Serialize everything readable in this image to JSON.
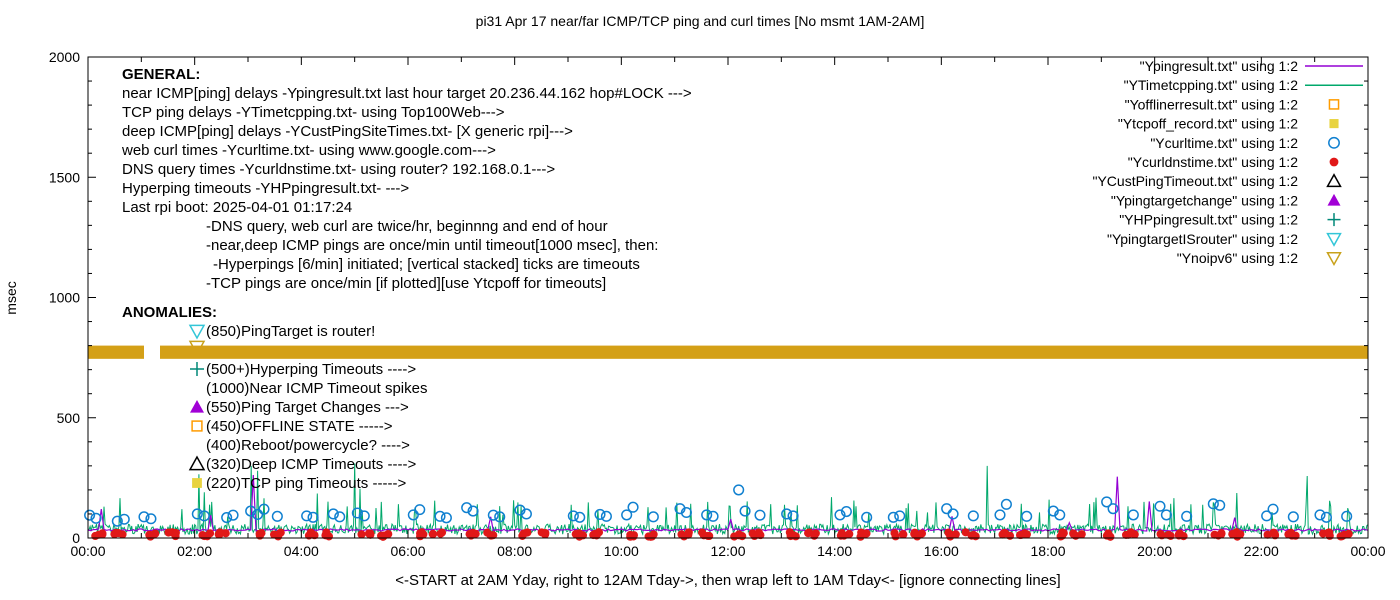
{
  "title": "pi31 Apr 17  near/far ICMP/TCP ping and curl times [No msmt 1AM-2AM]",
  "caption": "<-START at 2AM Yday, right to 12AM Tday->, then wrap left to 1AM Tday<- [ignore connecting lines]",
  "ylabel": "msec",
  "palette": {
    "purple": "#9400d3",
    "green": "#00a86b",
    "orange": "#ff9c00",
    "yellow": "#e8d33f",
    "blue": "#1080d0",
    "red": "#e01818",
    "black": "#000000",
    "magenta": "#a100d6",
    "teal": "#008878",
    "cyan": "#33c6d8",
    "gold": "#c9a21b",
    "band": "#d4a017",
    "axis": "#000000"
  },
  "legend": [
    {
      "label": "\"Ypingresult.txt\" using 1:2",
      "marker": "line",
      "color": "purple"
    },
    {
      "label": "\"YTimetcpping.txt\" using 1:2",
      "marker": "line",
      "color": "green"
    },
    {
      "label": "\"Yofflinerresult.txt\" using 1:2",
      "marker": "square-open",
      "color": "orange"
    },
    {
      "label": "\"Ytcpoff_record.txt\" using 1:2",
      "marker": "square-filled",
      "color": "yellow"
    },
    {
      "label": "\"Ycurltime.txt\" using 1:2",
      "marker": "circle-open",
      "color": "blue"
    },
    {
      "label": "\"Ycurldnstime.txt\" using 1:2",
      "marker": "circle-filled",
      "color": "red"
    },
    {
      "label": "\"YCustPingTimeout.txt\" using 1:2",
      "marker": "triangle-up-open",
      "color": "black"
    },
    {
      "label": "\"Ypingtargetchange\" using 1:2",
      "marker": "triangle-up-filled",
      "color": "magenta"
    },
    {
      "label": "\"YHPpingresult.txt\" using 1:2",
      "marker": "plus",
      "color": "teal"
    },
    {
      "label": "\"YpingtargetISrouter\" using 1:2",
      "marker": "triangle-down-open",
      "color": "cyan"
    },
    {
      "label": "\"Ynoipv6\" using 1:2",
      "marker": "triangle-down-open",
      "color": "gold"
    }
  ],
  "general": {
    "header": "GENERAL:",
    "lines": [
      "near ICMP[ping] delays -Ypingresult.txt last hour target 20.236.44.162 hop#LOCK --->",
      "TCP ping delays -YTimetcpping.txt- using Top100Web--->",
      "deep ICMP[ping] delays -YCustPingSiteTimes.txt- [X generic rpi]--->",
      "web curl times -Ycurltime.txt- using www.google.com--->",
      "DNS query times -Ycurldnstime.txt- using router? 192.168.0.1--->",
      "Hyperping timeouts -YHPpingresult.txt- --->",
      "Last rpi boot: 2025-04-01 01:17:24"
    ],
    "sub_lines": [
      "-DNS query, web curl are twice/hr, beginnng and end of hour",
      "-near,deep ICMP pings are once/min until timeout[1000 msec], then:",
      "-Hyperpings [6/min] initiated; [vertical stacked] ticks are timeouts",
      "-TCP pings are once/min [if plotted][use Ytcpoff for timeouts]"
    ]
  },
  "anomalies": {
    "header": "ANOMALIES:",
    "rows": [
      {
        "y": 336,
        "marker": "triangle-down-open",
        "color": "cyan",
        "text": "(850)PingTarget is router!"
      },
      {
        "y": 352,
        "marker": "triangle-down-open",
        "color": "gold",
        "text": "",
        "occluded": true
      },
      {
        "y": 374,
        "marker": "plus",
        "color": "teal",
        "text": "(500+)Hyperping Timeouts ---->"
      },
      {
        "y": 393,
        "marker": "",
        "color": "black",
        "text": "(1000)Near ICMP Timeout spikes"
      },
      {
        "y": 412,
        "marker": "triangle-up-filled",
        "color": "magenta",
        "text": "(550)Ping Target Changes --->"
      },
      {
        "y": 431,
        "marker": "square-open",
        "color": "orange",
        "text": "(450)OFFLINE STATE ----->"
      },
      {
        "y": 450,
        "marker": "",
        "color": "black",
        "text": "(400)Reboot/powercycle? ---->"
      },
      {
        "y": 469,
        "marker": "triangle-up-open",
        "color": "black",
        "text": "(320)Deep ICMP Timeouts ---->"
      },
      {
        "y": 488,
        "marker": "square-filled",
        "color": "yellow",
        "text": "(220)TCP ping Timeouts ----->"
      }
    ]
  },
  "chart_data": {
    "type": "mixed-line-scatter",
    "x_axis": {
      "range_hours": [
        0,
        24
      ],
      "tick_labels": [
        "00:00",
        "02:00",
        "04:00",
        "06:00",
        "08:00",
        "10:00",
        "12:00",
        "14:00",
        "16:00",
        "18:00",
        "20:00",
        "22:00",
        "00:00"
      ],
      "minor_tick_every_hours": 1
    },
    "y_axis": {
      "label": "msec",
      "range": [
        0,
        2000
      ],
      "ticks": [
        0,
        500,
        1000,
        1500,
        2000
      ],
      "minor_tick_every": 100
    },
    "grid": false,
    "legend_position": "top-right",
    "band": {
      "name": "Ynoipv6",
      "y_msec": [
        745,
        800
      ],
      "gaps_hours": [
        [
          1.05,
          1.35
        ]
      ],
      "color": "band"
    },
    "series": [
      {
        "name": "YTimetcpping.txt",
        "type": "line",
        "color": "green",
        "seed": 7,
        "step_hours": 0.02,
        "baseline_msec": [
          16,
          58
        ],
        "random_spike_chance": 0.035,
        "random_spike_extra_msec": [
          50,
          140
        ],
        "spikes": [
          [
            0.3,
            130
          ],
          [
            2.08,
            265
          ],
          [
            2.18,
            190
          ],
          [
            2.32,
            150
          ],
          [
            3.05,
            300
          ],
          [
            3.18,
            280
          ],
          [
            3.3,
            165
          ],
          [
            4.3,
            185
          ],
          [
            5.0,
            310
          ],
          [
            5.1,
            205
          ],
          [
            5.5,
            150
          ],
          [
            6.5,
            155
          ],
          [
            7.3,
            140
          ],
          [
            8.05,
            148
          ],
          [
            9.05,
            138
          ],
          [
            10.5,
            128
          ],
          [
            11.3,
            142
          ],
          [
            12.35,
            152
          ],
          [
            13.05,
            138
          ],
          [
            14.4,
            132
          ],
          [
            15.9,
            148
          ],
          [
            16.85,
            300
          ],
          [
            17.5,
            142
          ],
          [
            18.9,
            168
          ],
          [
            19.5,
            132
          ],
          [
            20.3,
            142
          ],
          [
            21.1,
            148
          ],
          [
            22.85,
            258
          ],
          [
            23.3,
            132
          ]
        ]
      },
      {
        "name": "Ypingresult.txt",
        "type": "line",
        "color": "purple",
        "seed": 3,
        "step_hours": 0.05,
        "baseline_msec": [
          29,
          38
        ],
        "random_spike_chance": 0.012,
        "random_spike_extra_msec": [
          30,
          70
        ],
        "spikes": [
          [
            0.25,
            120
          ],
          [
            2.3,
            95
          ],
          [
            3.08,
            262
          ],
          [
            7.55,
            88
          ],
          [
            12.05,
            78
          ],
          [
            16.2,
            90
          ],
          [
            19.3,
            255
          ],
          [
            19.9,
            152
          ],
          [
            21.5,
            85
          ]
        ]
      },
      {
        "name": "Ycurltime.txt",
        "type": "scatter",
        "marker": "circle-open",
        "color": "blue",
        "points_hours_msec": [
          [
            0.03,
            95
          ],
          [
            0.15,
            82
          ],
          [
            0.55,
            70
          ],
          [
            0.68,
            78
          ],
          [
            1.05,
            88
          ],
          [
            1.18,
            80
          ],
          [
            2.05,
            100
          ],
          [
            2.18,
            92
          ],
          [
            2.6,
            85
          ],
          [
            2.72,
            95
          ],
          [
            3.05,
            112
          ],
          [
            3.18,
            98
          ],
          [
            3.3,
            120
          ],
          [
            3.55,
            90
          ],
          [
            4.1,
            92
          ],
          [
            4.22,
            86
          ],
          [
            4.6,
            100
          ],
          [
            4.72,
            88
          ],
          [
            5.05,
            104
          ],
          [
            5.18,
            92
          ],
          [
            6.1,
            96
          ],
          [
            6.22,
            118
          ],
          [
            6.6,
            90
          ],
          [
            6.72,
            84
          ],
          [
            7.1,
            126
          ],
          [
            7.22,
            112
          ],
          [
            7.6,
            95
          ],
          [
            7.72,
            88
          ],
          [
            8.1,
            116
          ],
          [
            8.22,
            100
          ],
          [
            9.1,
            92
          ],
          [
            9.22,
            86
          ],
          [
            9.6,
            98
          ],
          [
            9.72,
            90
          ],
          [
            10.1,
            96
          ],
          [
            10.22,
            128
          ],
          [
            10.6,
            88
          ],
          [
            11.1,
            122
          ],
          [
            11.22,
            106
          ],
          [
            11.6,
            96
          ],
          [
            11.72,
            90
          ],
          [
            12.2,
            200
          ],
          [
            12.32,
            112
          ],
          [
            12.6,
            95
          ],
          [
            13.1,
            100
          ],
          [
            13.22,
            92
          ],
          [
            14.1,
            96
          ],
          [
            14.22,
            110
          ],
          [
            14.6,
            86
          ],
          [
            15.1,
            86
          ],
          [
            15.22,
            92
          ],
          [
            16.1,
            122
          ],
          [
            16.22,
            100
          ],
          [
            16.6,
            92
          ],
          [
            17.1,
            96
          ],
          [
            17.22,
            140
          ],
          [
            17.6,
            90
          ],
          [
            18.1,
            112
          ],
          [
            18.22,
            96
          ],
          [
            19.1,
            150
          ],
          [
            19.22,
            122
          ],
          [
            19.6,
            96
          ],
          [
            20.1,
            132
          ],
          [
            20.22,
            96
          ],
          [
            20.6,
            90
          ],
          [
            21.1,
            142
          ],
          [
            21.22,
            136
          ],
          [
            22.1,
            92
          ],
          [
            22.22,
            120
          ],
          [
            22.6,
            88
          ],
          [
            23.1,
            96
          ],
          [
            23.22,
            86
          ],
          [
            23.6,
            90
          ]
        ]
      },
      {
        "name": "Ycurldnstime.txt",
        "type": "scatter-clusters",
        "marker": "circle-filled",
        "color": "red",
        "cluster_hours": [
          0,
          1,
          2,
          3,
          4,
          5,
          6,
          7,
          8,
          9,
          10,
          11,
          12,
          13,
          14,
          15,
          16,
          17,
          18,
          19,
          20,
          21,
          22,
          23
        ],
        "offsets": [
          0.1,
          0.45
        ],
        "dots_per_cluster": 4,
        "y_msec_range": [
          5,
          24
        ]
      }
    ]
  }
}
